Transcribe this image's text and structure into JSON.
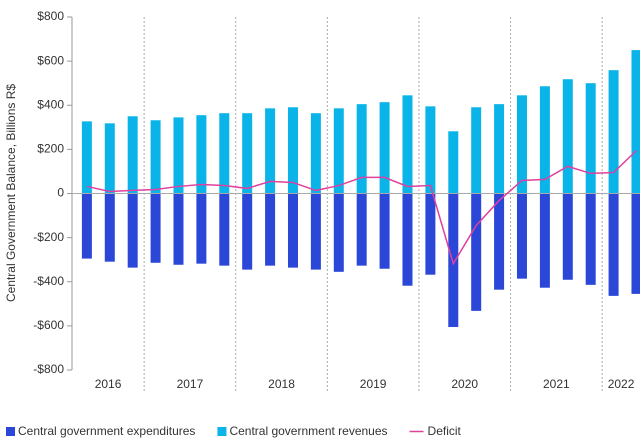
{
  "chart_data": {
    "type": "bar",
    "y_label": "Central Government Balance, Billions R$",
    "categories": [
      null,
      null,
      null,
      null,
      null,
      null,
      null,
      null,
      null,
      null,
      null,
      null,
      null,
      null,
      null,
      null,
      null,
      null,
      null,
      null,
      null,
      null,
      null,
      null,
      null
    ],
    "year_labels": [
      "2016",
      "2017",
      "2018",
      "2019",
      "2020",
      "2021",
      "2022"
    ],
    "year_counts": [
      3,
      4,
      4,
      4,
      4,
      4,
      2
    ],
    "series": [
      {
        "name": "Central government expenditures",
        "color": "#2b47d8",
        "kind": "bar",
        "values": [
          -295,
          -309,
          -336,
          -314,
          -323,
          -318,
          -327,
          -345,
          -327,
          -336,
          -345,
          -355,
          -327,
          -341,
          -418,
          -368,
          -605,
          -532,
          -436,
          -386,
          -427,
          -391,
          -414,
          -464,
          -455
        ]
      },
      {
        "name": "Central government revenues",
        "color": "#0ab4e8",
        "kind": "bar",
        "values": [
          327,
          318,
          350,
          332,
          345,
          355,
          364,
          364,
          386,
          391,
          364,
          386,
          405,
          414,
          445,
          395,
          282,
          391,
          405,
          445,
          486,
          518,
          500,
          559,
          650
        ]
      },
      {
        "name": "Deficit",
        "color": "#e0409e",
        "kind": "line",
        "values": [
          32,
          9,
          14,
          18,
          32,
          41,
          36,
          23,
          55,
          50,
          14,
          36,
          73,
          73,
          32,
          36,
          -318,
          -145,
          -32,
          59,
          64,
          123,
          91,
          95,
          195
        ]
      }
    ],
    "ylim": [
      -800,
      800
    ],
    "yticks": [
      {
        "value": -800,
        "label": "-$800"
      },
      {
        "value": -600,
        "label": "-$600"
      },
      {
        "value": -400,
        "label": "-$400"
      },
      {
        "value": -200,
        "label": "-$200"
      },
      {
        "value": 0,
        "label": "0"
      },
      {
        "value": 200,
        "label": "$200"
      },
      {
        "value": 400,
        "label": "$400"
      },
      {
        "value": 600,
        "label": "$600"
      },
      {
        "value": 800,
        "label": "$800"
      }
    ]
  }
}
